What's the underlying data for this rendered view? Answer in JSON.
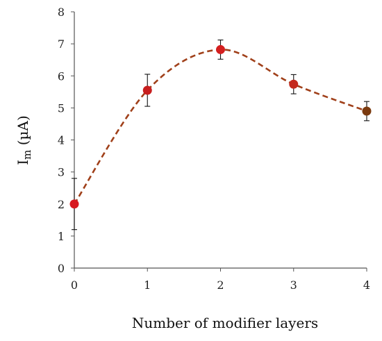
{
  "chart_data": {
    "type": "scatter",
    "xlabel": "Number of modifier layers",
    "ylabel_main": "I",
    "ylabel_sub": "m",
    "ylabel_unit": " (µA)",
    "xlim": [
      0,
      4
    ],
    "ylim": [
      0,
      8
    ],
    "x_ticks": [
      "0",
      "1",
      "2",
      "3",
      "4"
    ],
    "y_ticks": [
      "0",
      "1",
      "2",
      "3",
      "4",
      "5",
      "6",
      "7",
      "8"
    ],
    "grid": false,
    "legend": "none",
    "series": [
      {
        "x": [
          0,
          1,
          2,
          3,
          4
        ],
        "y": [
          2.0,
          5.55,
          6.82,
          5.74,
          4.9
        ],
        "error": [
          0.8,
          0.5,
          0.3,
          0.3,
          0.3
        ],
        "marker_colors": [
          "#d71920",
          "#c81e1e",
          "#d41f1f",
          "#c42a1e",
          "#7b3a0f"
        ],
        "trend_color": "#a0401a"
      }
    ]
  }
}
